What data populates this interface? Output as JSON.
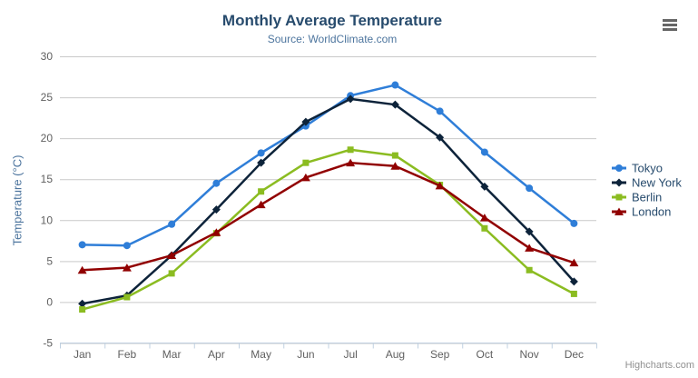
{
  "chart_data": {
    "type": "line",
    "title": "Monthly Average Temperature",
    "subtitle": "Source: WorldClimate.com",
    "xlabel": "",
    "ylabel": "Temperature (°C)",
    "categories": [
      "Jan",
      "Feb",
      "Mar",
      "Apr",
      "May",
      "Jun",
      "Jul",
      "Aug",
      "Sep",
      "Oct",
      "Nov",
      "Dec"
    ],
    "series": [
      {
        "name": "Tokyo",
        "color": "#2f7ed8",
        "marker": "circle",
        "values": [
          7.0,
          6.9,
          9.5,
          14.5,
          18.2,
          21.5,
          25.2,
          26.5,
          23.3,
          18.3,
          13.9,
          9.6
        ]
      },
      {
        "name": "New York",
        "color": "#0d233a",
        "marker": "diamond",
        "values": [
          -0.2,
          0.8,
          5.7,
          11.3,
          17.0,
          22.0,
          24.8,
          24.1,
          20.1,
          14.1,
          8.6,
          2.5
        ]
      },
      {
        "name": "Berlin",
        "color": "#8bbc21",
        "marker": "square",
        "values": [
          -0.9,
          0.6,
          3.5,
          8.4,
          13.5,
          17.0,
          18.6,
          17.9,
          14.3,
          9.0,
          3.9,
          1.0
        ]
      },
      {
        "name": "London",
        "color": "#910000",
        "marker": "triangle",
        "values": [
          3.9,
          4.2,
          5.7,
          8.5,
          11.9,
          15.2,
          17.0,
          16.6,
          14.2,
          10.3,
          6.6,
          4.8
        ]
      }
    ],
    "ylim": [
      -5,
      30
    ],
    "ytick_step": 5,
    "yticks": [
      -5,
      0,
      5,
      10,
      15,
      20,
      25,
      30
    ],
    "grid": true,
    "legend_position": "right"
  },
  "credits": "Highcharts.com",
  "theme": {
    "title_color": "#274b6d",
    "subtitle_color": "#4d759e",
    "axis_title_color": "#4d759e",
    "axis_label_color": "#606060",
    "gridline_color": "#c9c9c9",
    "axis_line_color": "#c0d0e0",
    "legend_text_color": "#274b6d",
    "credits_color": "#909090",
    "export_icon_color": "#666666",
    "background": "#ffffff"
  }
}
